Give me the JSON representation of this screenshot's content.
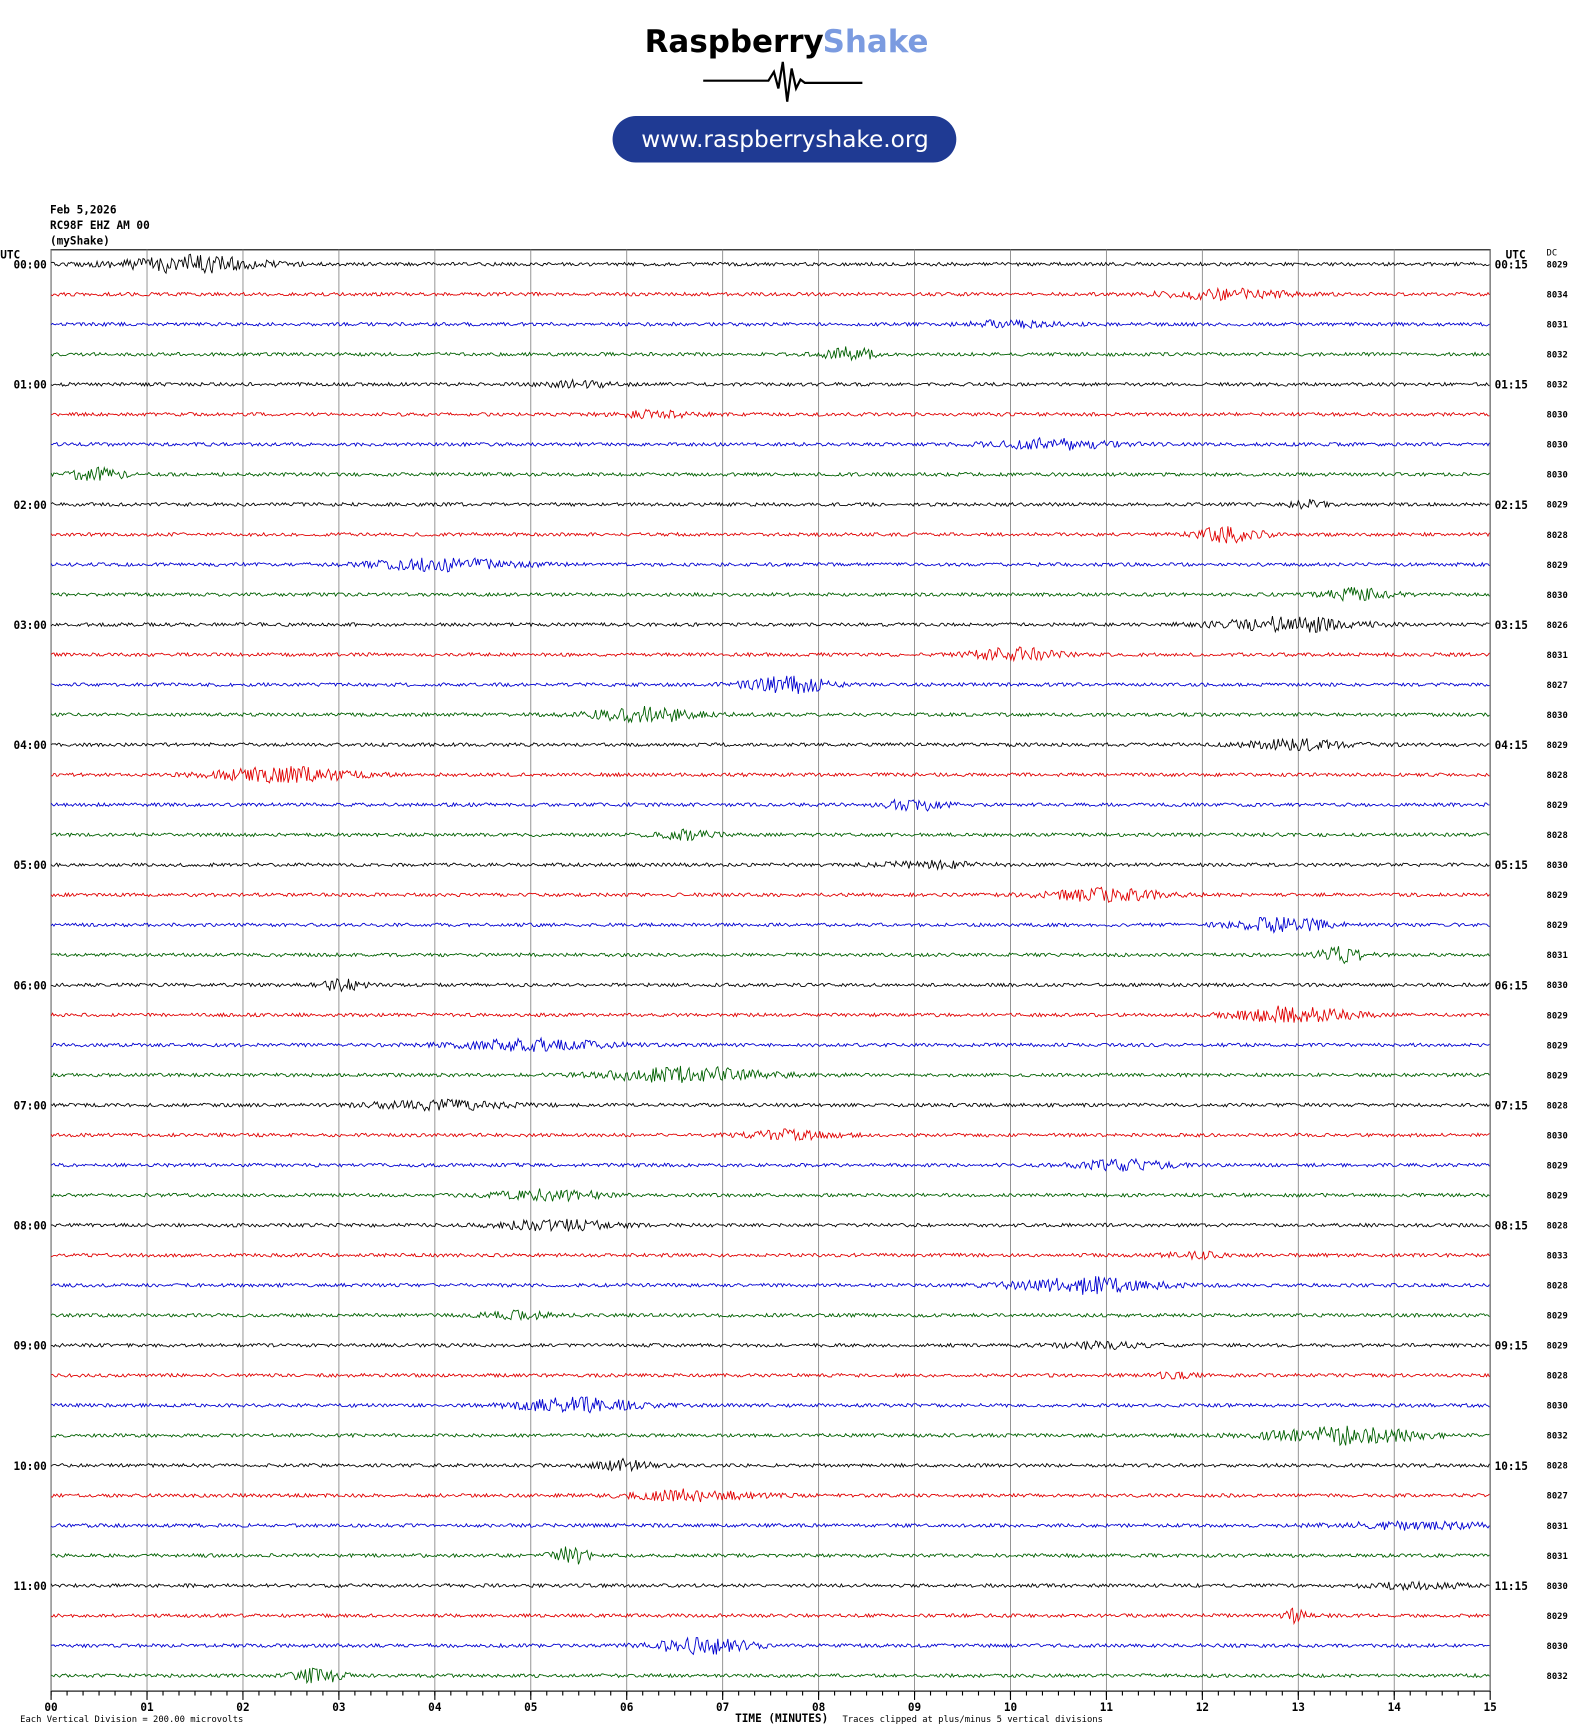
{
  "header": {
    "brand_1": "Raspberry",
    "brand_2": "Shake",
    "url": "www.raspberryshake.org"
  },
  "chart_data": {
    "type": "helicorder",
    "date": "Feb 5,2026",
    "station": "RC98F EHZ AM 00",
    "network": "(myShake)",
    "utc_left": "UTC",
    "utc_right": "UTC",
    "dc_label": "DC",
    "xlabel": "TIME (MINUTES)",
    "scale_note": "Each Vertical Division =  200.00 microvolts",
    "clip_note": "Traces clipped at plus/minus 5 vertical divisions",
    "colors": [
      "#000000",
      "#e00000",
      "#0000d0",
      "#006000"
    ],
    "xlim": [
      0,
      15
    ],
    "xticks": [
      {
        "value": 0,
        "label": "00"
      },
      {
        "value": 1,
        "label": "01"
      },
      {
        "value": 2,
        "label": "02"
      },
      {
        "value": 3,
        "label": "03"
      },
      {
        "value": 4,
        "label": "04"
      },
      {
        "value": 5,
        "label": "05"
      },
      {
        "value": 6,
        "label": "06"
      },
      {
        "value": 7,
        "label": "07"
      },
      {
        "value": 8,
        "label": "08"
      },
      {
        "value": 9,
        "label": "09"
      },
      {
        "value": 10,
        "label": "10"
      },
      {
        "value": 11,
        "label": "11"
      },
      {
        "value": 12,
        "label": "12"
      },
      {
        "value": 13,
        "label": "13"
      },
      {
        "value": 14,
        "label": "14"
      },
      {
        "value": 15,
        "label": "15"
      }
    ],
    "left_labels": [
      "00:00",
      "01:00",
      "02:00",
      "03:00",
      "04:00",
      "05:00",
      "06:00",
      "07:00",
      "08:00",
      "09:00",
      "10:00",
      "11:00"
    ],
    "right_labels": [
      "00:15",
      "01:15",
      "02:15",
      "03:15",
      "04:15",
      "05:15",
      "06:15",
      "07:15",
      "08:15",
      "09:15",
      "10:15",
      "11:15"
    ],
    "dc": [
      8029,
      8034,
      8031,
      8032,
      8032,
      8030,
      8030,
      8030,
      8029,
      8028,
      8029,
      8030,
      8026,
      8031,
      8027,
      8030,
      8029,
      8028,
      8029,
      8028,
      8030,
      8029,
      8029,
      8031,
      8030,
      8029,
      8029,
      8029,
      8028,
      8030,
      8029,
      8029,
      8028,
      8033,
      8028,
      8029,
      8029,
      8028,
      8030,
      8032,
      8028,
      8027,
      8031,
      8031,
      8030,
      8029,
      8030,
      8032
    ]
  }
}
